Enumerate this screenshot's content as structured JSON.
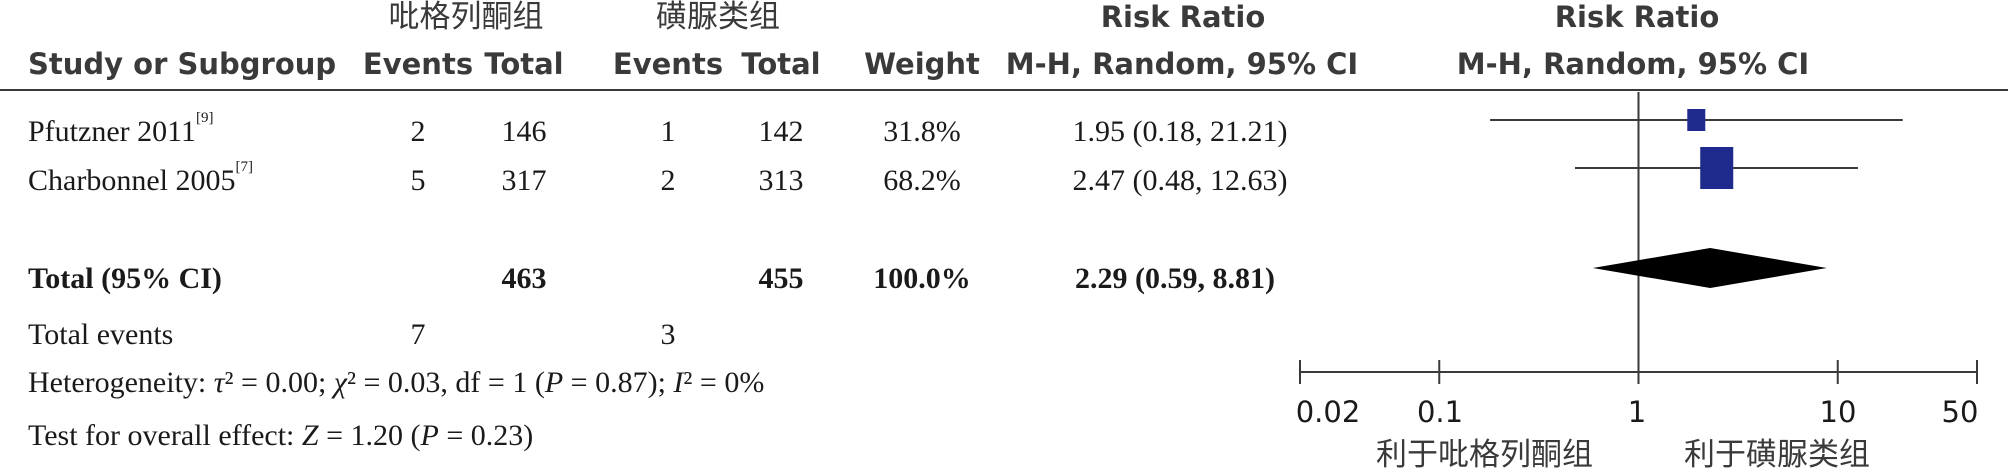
{
  "header": {
    "group1_name": "吡格列酮组",
    "group2_name": "磺脲类组",
    "col_study": "Study or Subgroup",
    "col_events1": "Events",
    "col_total1": "Total",
    "col_events2": "Events",
    "col_total2": "Total",
    "col_weight": "Weight",
    "col_rr_title": "Risk Ratio",
    "col_rr_method": "M-H, Random, 95% CI",
    "plot_title": "Risk Ratio",
    "plot_method": "M-H, Random, 95% CI"
  },
  "studies": [
    {
      "name": "Pfutzner 2011",
      "ref": "[9]",
      "events1": "2",
      "total1": "146",
      "events2": "1",
      "total2": "142",
      "weight": "31.8%",
      "ci_text": "1.95 (0.18, 21.21)"
    },
    {
      "name": "Charbonnel 2005",
      "ref": "[7]",
      "events1": "5",
      "total1": "317",
      "events2": "2",
      "total2": "313",
      "weight": "68.2%",
      "ci_text": "2.47 (0.48, 12.63)"
    }
  ],
  "total": {
    "label": "Total (95% CI)",
    "total1": "463",
    "total2": "455",
    "weight": "100.0%",
    "ci_text": "2.29 (0.59, 8.81)"
  },
  "total_events": {
    "label": "Total events",
    "events1": "7",
    "events2": "3"
  },
  "heterogeneity": {
    "prefix": "Heterogeneity: ",
    "tau": "τ",
    "chi": "χ",
    "I": "I",
    "P": "P",
    "tau2": "0.00",
    "chi2": "0.03",
    "df": "1",
    "p": "0.87",
    "i2": "0%"
  },
  "overall_effect": {
    "prefix": "Test for overall effect: ",
    "Z": "Z",
    "P": "P",
    "z": "1.20",
    "p": "0.23"
  },
  "axis": {
    "ticks": [
      "0.02",
      "0.1",
      "1",
      "10",
      "50"
    ],
    "favors_left": "利于吡格列酮组",
    "favors_right": "利于磺脲类组"
  },
  "chart_data": {
    "type": "forest",
    "scale": "log",
    "xlim": [
      0.02,
      50
    ],
    "x_ticks": [
      0.02,
      0.1,
      1,
      10,
      50
    ],
    "reference_line": 1,
    "studies": [
      {
        "name": "Pfutzner 2011",
        "rr": 1.95,
        "lower": 0.18,
        "upper": 21.21,
        "weight": 31.8
      },
      {
        "name": "Charbonnel 2005",
        "rr": 2.47,
        "lower": 0.48,
        "upper": 12.63,
        "weight": 68.2
      }
    ],
    "pooled": {
      "rr": 2.29,
      "lower": 0.59,
      "upper": 8.81
    },
    "colors": {
      "square": "#1e2a8c",
      "diamond": "#000000",
      "lines": "#3a3a3a"
    }
  }
}
